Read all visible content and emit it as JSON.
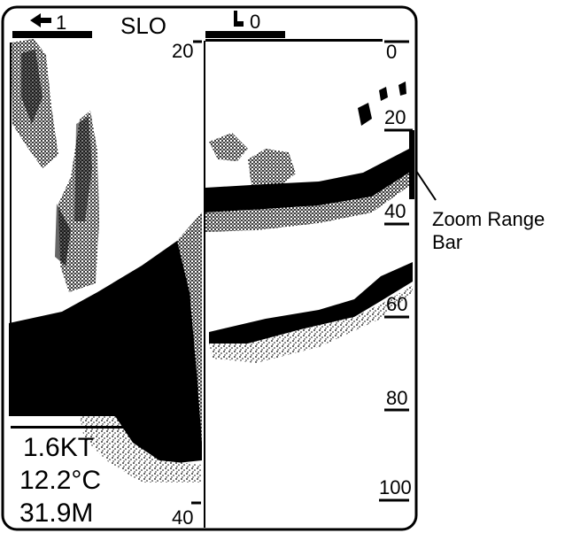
{
  "header": {
    "left_indicator": "1",
    "mode": "SLO",
    "right_indicator": "0"
  },
  "left_scale": {
    "top_label": "20",
    "bottom_label": "40"
  },
  "right_scale": {
    "ticks": [
      "0",
      "20",
      "40",
      "60",
      "80",
      "100"
    ]
  },
  "readouts": {
    "speed": "1.6KT",
    "temperature": "12.2°C",
    "depth": "31.9M"
  },
  "callout": {
    "line1": "Zoom Range",
    "line2": "Bar"
  },
  "colors": {
    "ink": "#000000",
    "paper": "#ffffff"
  }
}
